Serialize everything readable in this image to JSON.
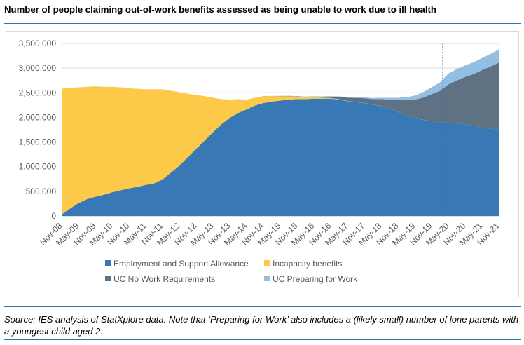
{
  "title": "Number of people claiming out-of-work benefits assessed as being unable to work due to ill health",
  "source": "Source: IES analysis of StatXplore data. Note that ‘Preparing for Work’ also includes a (likely small) number of lone parents with a youngest child aged 2.",
  "colors": {
    "esa": "#3878b4",
    "ib": "#fcc948",
    "uc_nwr": "#5f7283",
    "uc_pfw": "#92bfe3",
    "rule": "#2e74b5"
  },
  "chart_data": {
    "type": "area",
    "stacked": true,
    "title": "Number of people claiming out-of-work benefits assessed as being unable to work due to ill health",
    "xlabel": "",
    "ylabel": "",
    "ylim": [
      0,
      3500000
    ],
    "y_ticks": [
      0,
      500000,
      1000000,
      1500000,
      2000000,
      2500000,
      3000000,
      3500000
    ],
    "y_tick_labels": [
      "0",
      "500,000",
      "1,000,000",
      "1,500,000",
      "2,000,000",
      "2,500,000",
      "3,000,000",
      "3,500,000"
    ],
    "grid": true,
    "legend_position": "bottom",
    "x_tick_labels": [
      "Nov-08",
      "May-09",
      "Nov-09",
      "May-10",
      "Nov-10",
      "May-11",
      "Nov-11",
      "May-12",
      "Nov-12",
      "May-13",
      "Nov-13",
      "May-14",
      "Nov-14",
      "May-15",
      "Nov-15",
      "May-16",
      "Nov-16",
      "May-17",
      "Nov-17",
      "May-18",
      "Nov-18",
      "May-19",
      "Nov-19",
      "May-20",
      "Nov-20",
      "May-21",
      "Nov-21"
    ],
    "x": [
      "Nov-08",
      "Feb-09",
      "May-09",
      "Aug-09",
      "Nov-09",
      "Feb-10",
      "May-10",
      "Aug-10",
      "Nov-10",
      "Feb-11",
      "May-11",
      "Aug-11",
      "Nov-11",
      "Feb-12",
      "May-12",
      "Aug-12",
      "Nov-12",
      "Feb-13",
      "May-13",
      "Aug-13",
      "Nov-13",
      "Feb-14",
      "May-14",
      "Aug-14",
      "Nov-14",
      "Feb-15",
      "May-15",
      "Aug-15",
      "Nov-15",
      "Feb-16",
      "May-16",
      "Aug-16",
      "Nov-16",
      "Feb-17",
      "May-17",
      "Aug-17",
      "Nov-17",
      "Feb-18",
      "May-18",
      "Aug-18",
      "Nov-18",
      "Feb-19",
      "May-19",
      "Aug-19",
      "Nov-19",
      "Feb-20",
      "May-20",
      "Aug-20",
      "Nov-20",
      "Feb-21",
      "May-21",
      "Aug-21",
      "Nov-21"
    ],
    "series": [
      {
        "name": "Employment and Support Allowance",
        "color_key": "esa",
        "values": [
          30000,
          150000,
          260000,
          340000,
          390000,
          430000,
          480000,
          520000,
          560000,
          590000,
          630000,
          660000,
          740000,
          880000,
          1020000,
          1190000,
          1360000,
          1530000,
          1700000,
          1860000,
          1990000,
          2090000,
          2160000,
          2240000,
          2290000,
          2320000,
          2340000,
          2360000,
          2370000,
          2370000,
          2380000,
          2380000,
          2380000,
          2360000,
          2330000,
          2310000,
          2290000,
          2260000,
          2230000,
          2180000,
          2110000,
          2040000,
          1990000,
          1950000,
          1920000,
          1900000,
          1890000,
          1880000,
          1860000,
          1830000,
          1800000,
          1770000,
          1750000
        ]
      },
      {
        "name": "Incapacity benefits",
        "color_key": "ib",
        "values": [
          2550000,
          2450000,
          2350000,
          2280000,
          2240000,
          2190000,
          2140000,
          2090000,
          2030000,
          1990000,
          1940000,
          1910000,
          1830000,
          1660000,
          1490000,
          1290000,
          1100000,
          900000,
          700000,
          510000,
          370000,
          280000,
          200000,
          160000,
          140000,
          110000,
          90000,
          70000,
          50000,
          40000,
          30000,
          20000,
          12000,
          8000,
          6000,
          4000,
          3000,
          2000,
          1500,
          1000,
          800,
          600,
          400,
          300,
          200,
          150,
          120,
          100,
          80,
          60,
          50,
          40,
          30
        ]
      },
      {
        "name": "UC No Work Requirements",
        "color_key": "uc_nwr",
        "values": [
          0,
          0,
          0,
          0,
          0,
          0,
          0,
          0,
          0,
          0,
          0,
          0,
          0,
          0,
          0,
          0,
          0,
          0,
          0,
          0,
          0,
          0,
          0,
          0,
          1000,
          2000,
          3000,
          5000,
          6000,
          8000,
          12000,
          20000,
          30000,
          50000,
          65000,
          80000,
          95000,
          110000,
          140000,
          180000,
          240000,
          310000,
          370000,
          450000,
          550000,
          640000,
          780000,
          870000,
          960000,
          1050000,
          1160000,
          1260000,
          1360000
        ]
      },
      {
        "name": "UC Preparing for Work",
        "color_key": "uc_pfw",
        "values": [
          0,
          0,
          0,
          0,
          0,
          0,
          0,
          0,
          0,
          0,
          0,
          0,
          0,
          0,
          0,
          0,
          0,
          0,
          0,
          0,
          0,
          0,
          0,
          0,
          1000,
          2000,
          3000,
          4000,
          5000,
          6000,
          7000,
          8000,
          9000,
          10000,
          12000,
          15000,
          18000,
          22000,
          28000,
          36000,
          46000,
          60000,
          80000,
          110000,
          140000,
          170000,
          220000,
          230000,
          235000,
          240000,
          245000,
          255000,
          265000
        ]
      }
    ],
    "annotations": [
      {
        "type": "vertical-dashed-line",
        "x": "Mar-20"
      }
    ]
  }
}
